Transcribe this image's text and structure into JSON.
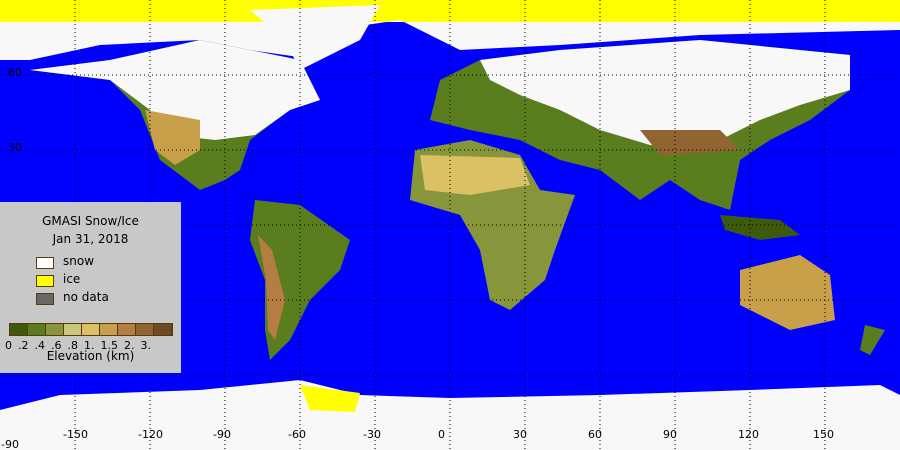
{
  "legend": {
    "title": "GMASI Snow/Ice",
    "date": "Jan 31, 2018",
    "items": [
      {
        "label": "snow",
        "color": "#ffffff"
      },
      {
        "label": "ice",
        "color": "#ffff00"
      },
      {
        "label": "no data",
        "color": "#686868"
      }
    ],
    "elevation_colors": [
      "#3c5a0a",
      "#5a7d1e",
      "#87963a",
      "#c8c878",
      "#dcc064",
      "#c8a04a",
      "#b47d41",
      "#916432",
      "#6e4b23"
    ],
    "elevation_ticks": [
      "0",
      ".2",
      ".4",
      ".6",
      ".8",
      "1.",
      "1.5",
      "2.",
      "3."
    ],
    "elevation_label": "Elevation (km)"
  },
  "axes": {
    "lon_labels": [
      "-150",
      "-120",
      "-90",
      "-60",
      "-30",
      "0",
      "30",
      "60",
      "90",
      "120",
      "150"
    ],
    "lat_labels": [
      "60",
      "30",
      "-90"
    ]
  },
  "colors": {
    "ocean": "#0000ff",
    "snow": "#ffffff",
    "ice": "#ffff00",
    "land": "#5a7d1e",
    "bottom_strip": "#f8f8f8"
  }
}
